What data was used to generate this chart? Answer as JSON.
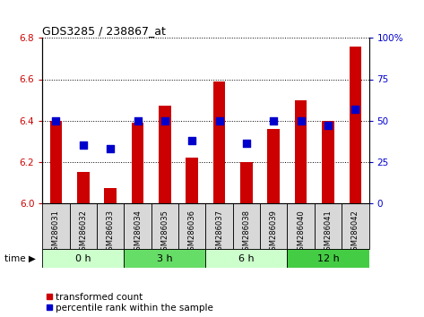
{
  "title": "GDS3285 / 238867_at",
  "samples": [
    "GSM286031",
    "GSM286032",
    "GSM286033",
    "GSM286034",
    "GSM286035",
    "GSM286036",
    "GSM286037",
    "GSM286038",
    "GSM286039",
    "GSM286040",
    "GSM286041",
    "GSM286042"
  ],
  "red_values": [
    6.4,
    6.15,
    6.07,
    6.39,
    6.47,
    6.22,
    6.59,
    6.2,
    6.36,
    6.5,
    6.4,
    6.76
  ],
  "blue_values": [
    50,
    35,
    33,
    50,
    50,
    38,
    50,
    36,
    50,
    50,
    47,
    57
  ],
  "ylim_left": [
    6.0,
    6.8
  ],
  "ylim_right": [
    0,
    100
  ],
  "yticks_left": [
    6.0,
    6.2,
    6.4,
    6.6,
    6.8
  ],
  "yticks_right": [
    0,
    25,
    50,
    75,
    100
  ],
  "time_groups": [
    {
      "label": "0 h",
      "start": 0,
      "end": 3,
      "color": "#ccffcc"
    },
    {
      "label": "3 h",
      "start": 3,
      "end": 6,
      "color": "#66dd66"
    },
    {
      "label": "6 h",
      "start": 6,
      "end": 9,
      "color": "#ccffcc"
    },
    {
      "label": "12 h",
      "start": 9,
      "end": 12,
      "color": "#44cc44"
    }
  ],
  "bar_color": "#cc0000",
  "dot_color": "#0000cc",
  "grid_color": "#000000",
  "bar_width": 0.45,
  "dot_size": 30,
  "left_tick_color": "#cc0000",
  "right_tick_color": "#0000cc",
  "legend_items": [
    "transformed count",
    "percentile rank within the sample"
  ],
  "time_label": "time",
  "ylabel_right_ticks": [
    "0",
    "25",
    "50",
    "75",
    "100%"
  ],
  "bg_plot": "#ffffff",
  "label_cell_color": "#d8d8d8"
}
